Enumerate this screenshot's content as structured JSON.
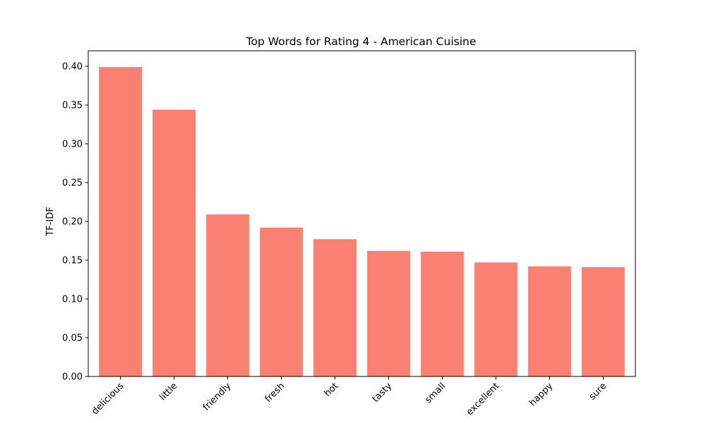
{
  "chart_data": {
    "type": "bar",
    "title": "Top Words for Rating 4 - American Cuisine",
    "xlabel": "",
    "ylabel": "TF-IDF",
    "categories": [
      "delicious",
      "little",
      "friendly",
      "fresh",
      "hot",
      "tasty",
      "small",
      "excellent",
      "happy",
      "sure"
    ],
    "values": [
      0.399,
      0.344,
      0.209,
      0.192,
      0.177,
      0.162,
      0.161,
      0.147,
      0.142,
      0.141
    ],
    "ylim": [
      0,
      0.42
    ],
    "yticks": [
      0.0,
      0.05,
      0.1,
      0.15,
      0.2,
      0.25,
      0.3,
      0.35,
      0.4
    ],
    "ytick_labels": [
      "0.00",
      "0.05",
      "0.10",
      "0.15",
      "0.20",
      "0.25",
      "0.30",
      "0.35",
      "0.40"
    ],
    "bar_color": "#fa8072",
    "grid": false,
    "legend": false
  }
}
